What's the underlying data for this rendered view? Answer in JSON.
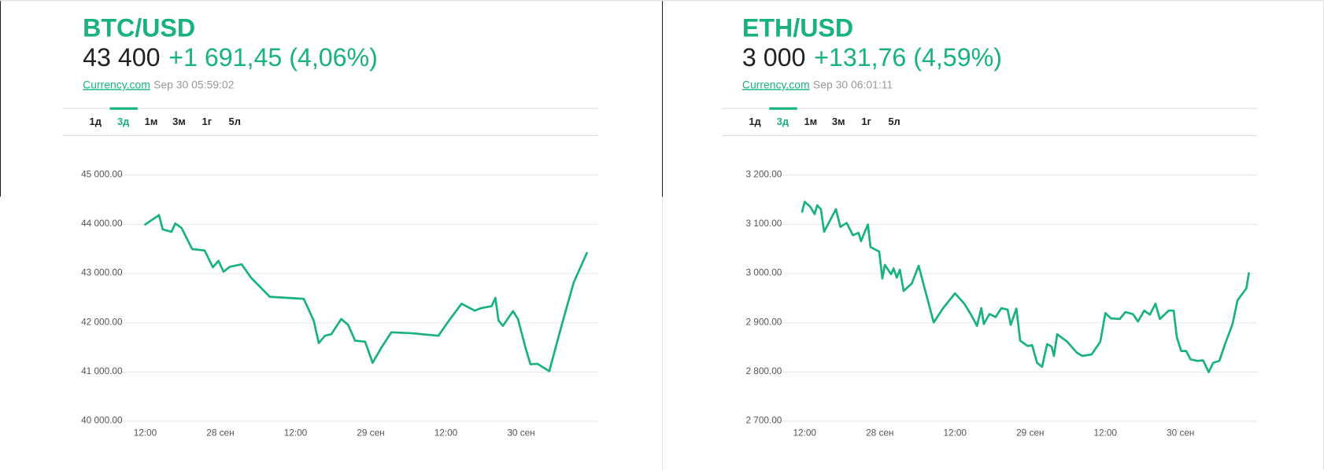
{
  "chart_data": [
    {
      "type": "line",
      "title": "BTC/USD",
      "price": "43 400",
      "change": "+1 691,45 (4,06%)",
      "source": "Currency.com",
      "timestamp": "Sep 30 05:59:02",
      "tabs": [
        "1д",
        "3д",
        "1м",
        "3м",
        "1г",
        "5л"
      ],
      "active_tab": 1,
      "color": "#17b27f",
      "grid": true,
      "x": [
        12,
        14.2,
        14.8,
        16.2,
        16.8,
        17.8,
        19.5,
        21.5,
        22.8,
        23.7,
        24.5,
        25.5,
        27.4,
        28.9,
        31.9,
        37.3,
        38.9,
        39.7,
        40.7,
        41.7,
        43.3,
        44.4,
        45.5,
        47.1,
        48.3,
        49.7,
        51.3,
        54.5,
        58.8,
        60.4,
        62.5,
        64.6,
        65.6,
        67.3,
        67.9,
        68.4,
        69.1,
        70.7,
        71.5,
        72.7,
        73.5,
        74.6,
        76.5,
        78.5,
        80.4,
        82.5
      ],
      "values": [
        43990,
        44180,
        43890,
        43840,
        44010,
        43920,
        43490,
        43460,
        43120,
        43250,
        43030,
        43130,
        43180,
        42910,
        42520,
        42480,
        42040,
        41580,
        41730,
        41760,
        42070,
        41950,
        41630,
        41610,
        41180,
        41490,
        41800,
        41780,
        41730,
        42020,
        42380,
        42240,
        42290,
        42330,
        42500,
        42040,
        41930,
        42230,
        42070,
        41490,
        41150,
        41160,
        41010,
        41950,
        42810,
        43410
      ],
      "xlim": [
        6.75,
        84.25
      ],
      "xticks": [
        {
          "value": 12,
          "label": "12:00"
        },
        {
          "value": 24,
          "label": "28 сен"
        },
        {
          "value": 36,
          "label": "12:00"
        },
        {
          "value": 48,
          "label": "29 сен"
        },
        {
          "value": 60,
          "label": "12:00"
        },
        {
          "value": 72,
          "label": "30 сен"
        }
      ],
      "ylim": [
        40000,
        45000
      ],
      "yticks": [
        {
          "value": 40000,
          "label": "40 000.00"
        },
        {
          "value": 41000,
          "label": "41 000.00"
        },
        {
          "value": 42000,
          "label": "42 000.00"
        },
        {
          "value": 43000,
          "label": "43 000.00"
        },
        {
          "value": 44000,
          "label": "44 000.00"
        },
        {
          "value": 45000,
          "label": "45 000.00"
        }
      ]
    },
    {
      "type": "line",
      "title": "ETH/USD",
      "price": "3 000",
      "change": "+131,76 (4,59%)",
      "source": "Currency.com",
      "timestamp": "Sep 30 06:01:11",
      "tabs": [
        "1д",
        "3д",
        "1м",
        "3м",
        "1г",
        "5л"
      ],
      "active_tab": 1,
      "color": "#17b27f",
      "grid": true,
      "x": [
        11.6,
        12,
        12.9,
        13.6,
        14,
        14.6,
        15.1,
        17,
        17.7,
        18.7,
        19.7,
        20.6,
        21,
        21.7,
        22.1,
        22.5,
        23.9,
        24.4,
        24.8,
        25.8,
        26.2,
        26.7,
        27.2,
        27.8,
        29.1,
        30.2,
        30.9,
        32.6,
        34.1,
        36,
        37.5,
        38.5,
        39.5,
        40.2,
        40.6,
        41.5,
        42.5,
        43.4,
        44.4,
        44.9,
        45.8,
        46.4,
        47.6,
        48.3,
        49.1,
        49.9,
        50.7,
        51.4,
        51.8,
        52.3,
        53.9,
        55.4,
        56.3,
        57.8,
        59.2,
        60,
        60.9,
        62.3,
        63.2,
        64.4,
        65.2,
        66.2,
        67.1,
        68,
        68.7,
        70.1,
        70.9,
        71.4,
        72.1,
        72.9,
        73.6,
        74.7,
        75.6,
        76.5,
        77.2,
        78.2,
        79.1,
        80.3,
        81.1,
        82.5,
        82.9
      ],
      "values": [
        3125,
        3145,
        3135,
        3120,
        3138,
        3130,
        3084,
        3130,
        3094,
        3102,
        3077,
        3082,
        3065,
        3087,
        3099,
        3053,
        3044,
        2989,
        3017,
        2998,
        3010,
        2991,
        3007,
        2964,
        2979,
        3015,
        2981,
        2900,
        2929,
        2959,
        2938,
        2917,
        2893,
        2929,
        2897,
        2917,
        2911,
        2929,
        2926,
        2895,
        2928,
        2863,
        2852,
        2854,
        2818,
        2810,
        2856,
        2851,
        2832,
        2876,
        2861,
        2839,
        2832,
        2835,
        2861,
        2919,
        2908,
        2907,
        2921,
        2917,
        2902,
        2924,
        2916,
        2938,
        2907,
        2924,
        2924,
        2870,
        2842,
        2842,
        2825,
        2822,
        2823,
        2799,
        2818,
        2822,
        2856,
        2897,
        2945,
        2969,
        3000
      ],
      "xlim": [
        6.75,
        84.25
      ],
      "xticks": [
        {
          "value": 12,
          "label": "12:00"
        },
        {
          "value": 24,
          "label": "28 сен"
        },
        {
          "value": 36,
          "label": "12:00"
        },
        {
          "value": 48,
          "label": "29 сен"
        },
        {
          "value": 60,
          "label": "12:00"
        },
        {
          "value": 72,
          "label": "30 сен"
        }
      ],
      "ylim": [
        2700,
        3200
      ],
      "yticks": [
        {
          "value": 2700,
          "label": "2 700.00"
        },
        {
          "value": 2800,
          "label": "2 800.00"
        },
        {
          "value": 2900,
          "label": "2 900.00"
        },
        {
          "value": 3000,
          "label": "3 000.00"
        },
        {
          "value": 3100,
          "label": "3 100.00"
        },
        {
          "value": 3200,
          "label": "3 200.00"
        }
      ]
    }
  ]
}
